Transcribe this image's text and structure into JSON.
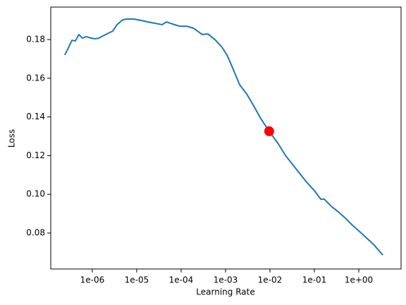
{
  "chart_data": {
    "type": "line",
    "xlabel": "Learning Rate",
    "ylabel": "Loss",
    "x": [
      2.4e-07,
      2.88e-07,
      3.47e-07,
      4.16e-07,
      4.99e-07,
      6e-07,
      7.2e-07,
      9.64e-07,
      1.16e-06,
      1.39e-06,
      2e-06,
      2.89e-06,
      3.6e-06,
      4.82e-06,
      6e-06,
      8.65e-06,
      1.25e-05,
      1.8e-05,
      2.59e-05,
      3.73e-05,
      4.64e-05,
      6.45e-05,
      9.3e-05,
      0.000134,
      0.000193,
      0.000299,
      0.000401,
      0.000578,
      0.000833,
      0.00108,
      0.00144,
      0.00208,
      0.00299,
      0.00431,
      0.00622,
      0.0096,
      0.0155,
      0.0223,
      0.0386,
      0.0668,
      0.1,
      0.139,
      0.167,
      0.24,
      0.347,
      0.499,
      0.719,
      1.0,
      1.5,
      2.15,
      3.47
    ],
    "values": [
      0.172,
      0.1756,
      0.1796,
      0.1793,
      0.1826,
      0.1807,
      0.1815,
      0.1807,
      0.1804,
      0.1807,
      0.1826,
      0.1844,
      0.1877,
      0.1902,
      0.1906,
      0.1906,
      0.1899,
      0.1891,
      0.1884,
      0.1877,
      0.1891,
      0.188,
      0.1869,
      0.1869,
      0.1858,
      0.1826,
      0.1829,
      0.18,
      0.176,
      0.172,
      0.1654,
      0.1566,
      0.1519,
      0.1457,
      0.1391,
      0.1326,
      0.126,
      0.1201,
      0.1132,
      0.1063,
      0.1019,
      0.0975,
      0.0975,
      0.0938,
      0.0909,
      0.0877,
      0.084,
      0.0811,
      0.0774,
      0.0741,
      0.0686
    ],
    "color": "#1f77b4",
    "marker": {
      "x": 0.0096,
      "y": 0.1326,
      "color": "#ff0000"
    },
    "xscale": "log",
    "xlim": [
      1.16e-07,
      8.95
    ],
    "xticks": [
      {
        "value": 1e-06,
        "label": "1e-06"
      },
      {
        "value": 1e-05,
        "label": "1e-05"
      },
      {
        "value": 0.0001,
        "label": "1e-04"
      },
      {
        "value": 0.001,
        "label": "1e-03"
      },
      {
        "value": 0.01,
        "label": "1e-02"
      },
      {
        "value": 0.1,
        "label": "1e-01"
      },
      {
        "value": 1,
        "label": "1e+00"
      }
    ],
    "ylim": [
      0.0614,
      0.1968
    ],
    "yticks": [
      0.08,
      {
        "value": 0.1,
        "label": "0.10"
      },
      0.12,
      0.14,
      0.16,
      0.18
    ],
    "grid": false
  }
}
